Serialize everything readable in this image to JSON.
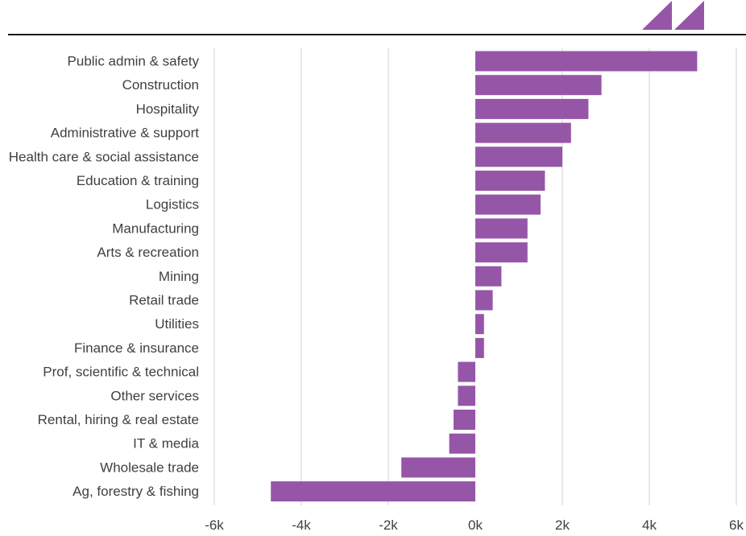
{
  "chart_data": {
    "type": "bar",
    "orientation": "horizontal",
    "categories": [
      "Public admin & safety",
      "Construction",
      "Hospitality",
      "Administrative & support",
      "Health care & social assistance",
      "Education & training",
      "Logistics",
      "Manufacturing",
      "Arts & recreation",
      "Mining",
      "Retail trade",
      "Utilities",
      "Finance & insurance",
      "Prof, scientific & technical",
      "Other services",
      "Rental, hiring & real estate",
      "IT & media",
      "Wholesale trade",
      "Ag, forestry & fishing"
    ],
    "values": [
      5100,
      2900,
      2600,
      2200,
      2000,
      1600,
      1500,
      1200,
      1200,
      600,
      400,
      200,
      200,
      -400,
      -400,
      -500,
      -600,
      -1700,
      -4700
    ],
    "xlim": [
      -6000,
      6000
    ],
    "xticks": [
      -6000,
      -4000,
      -2000,
      0,
      2000,
      4000,
      6000
    ],
    "xtick_labels": [
      "-6k",
      "-4k",
      "-2k",
      "0k",
      "2k",
      "4k",
      "6k"
    ],
    "title": "",
    "xlabel": "",
    "ylabel": "",
    "grid": "vertical",
    "bar_color": "#9656a8",
    "logo_color": "#9656a8"
  }
}
